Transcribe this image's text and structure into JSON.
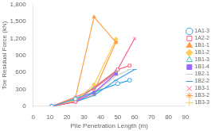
{
  "chart_data": {
    "type": "line",
    "xlabel": "Pile Penetration Length (m)",
    "ylabel": "Toe Residual Force (kN)",
    "xlim": [
      0,
      90
    ],
    "ylim": [
      0,
      1800
    ],
    "xticks": [
      0,
      10,
      20,
      30,
      40,
      50,
      60,
      70,
      80,
      90
    ],
    "yticks": [
      0,
      300,
      600,
      900,
      1200,
      1500,
      1800
    ],
    "grid": false,
    "legend": "right",
    "series": [
      {
        "name": "1A1-3",
        "marker": "circle-open",
        "x": [
          11,
          25,
          50,
          57
        ],
        "values": [
          0,
          130,
          400,
          460
        ]
      },
      {
        "name": "1A2-2",
        "marker": "square-open",
        "x": [
          11,
          25,
          50,
          57
        ],
        "values": [
          0,
          80,
          650,
          720
        ]
      },
      {
        "name": "1B1-1",
        "marker": "triangle",
        "x": [
          11,
          25,
          36,
          49
        ],
        "values": [
          0,
          150,
          1580,
          1130
        ]
      },
      {
        "name": "1B1-2",
        "marker": "diamond",
        "x": [
          11,
          25,
          36,
          49
        ],
        "values": [
          0,
          100,
          380,
          1190
        ]
      },
      {
        "name": "1B1-3",
        "marker": "triangle-open",
        "x": [
          11,
          25,
          36,
          49
        ],
        "values": [
          0,
          120,
          330,
          620
        ]
      },
      {
        "name": "1B1-4",
        "marker": "square",
        "x": [
          11,
          25,
          36,
          49
        ],
        "values": [
          0,
          80,
          240,
          580
        ]
      },
      {
        "name": "1B2-1",
        "marker": "dash",
        "x": [
          11,
          25,
          36,
          49,
          57
        ],
        "values": [
          0,
          100,
          230,
          540,
          650
        ]
      },
      {
        "name": "1B2-2",
        "marker": "dash",
        "x": [
          11,
          25,
          36,
          49,
          60
        ],
        "values": [
          0,
          80,
          190,
          460,
          650
        ]
      },
      {
        "name": "1B3-1",
        "marker": "x",
        "x": [
          11,
          25,
          36,
          49,
          60
        ],
        "values": [
          0,
          160,
          310,
          600,
          1200
        ]
      },
      {
        "name": "1B3-2",
        "marker": "star",
        "x": [
          11,
          25,
          36,
          49
        ],
        "values": [
          0,
          110,
          260,
          1140
        ]
      },
      {
        "name": "1B3-3",
        "marker": "plus",
        "x": [
          11,
          25,
          36,
          49
        ],
        "values": [
          0,
          80,
          200,
          590
        ]
      }
    ]
  }
}
